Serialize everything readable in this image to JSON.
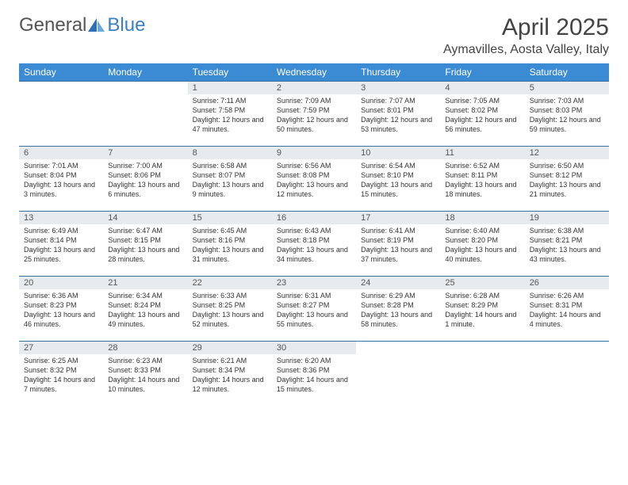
{
  "logo": {
    "part1": "General",
    "part2": "Blue"
  },
  "title": "April 2025",
  "location": "Aymavilles, Aosta Valley, Italy",
  "colors": {
    "header_bg": "#3b8bd4",
    "header_text": "#ffffff",
    "daynum_bg": "#e8ebee",
    "border": "#3b6fa0",
    "logo_accent": "#3b7fc4",
    "text": "#333333"
  },
  "dayHeaders": [
    "Sunday",
    "Monday",
    "Tuesday",
    "Wednesday",
    "Thursday",
    "Friday",
    "Saturday"
  ],
  "weeks": [
    [
      null,
      null,
      {
        "n": 1,
        "sr": "7:11 AM",
        "ss": "7:58 PM",
        "dl": "12 hours and 47 minutes."
      },
      {
        "n": 2,
        "sr": "7:09 AM",
        "ss": "7:59 PM",
        "dl": "12 hours and 50 minutes."
      },
      {
        "n": 3,
        "sr": "7:07 AM",
        "ss": "8:01 PM",
        "dl": "12 hours and 53 minutes."
      },
      {
        "n": 4,
        "sr": "7:05 AM",
        "ss": "8:02 PM",
        "dl": "12 hours and 56 minutes."
      },
      {
        "n": 5,
        "sr": "7:03 AM",
        "ss": "8:03 PM",
        "dl": "12 hours and 59 minutes."
      }
    ],
    [
      {
        "n": 6,
        "sr": "7:01 AM",
        "ss": "8:04 PM",
        "dl": "13 hours and 3 minutes."
      },
      {
        "n": 7,
        "sr": "7:00 AM",
        "ss": "8:06 PM",
        "dl": "13 hours and 6 minutes."
      },
      {
        "n": 8,
        "sr": "6:58 AM",
        "ss": "8:07 PM",
        "dl": "13 hours and 9 minutes."
      },
      {
        "n": 9,
        "sr": "6:56 AM",
        "ss": "8:08 PM",
        "dl": "13 hours and 12 minutes."
      },
      {
        "n": 10,
        "sr": "6:54 AM",
        "ss": "8:10 PM",
        "dl": "13 hours and 15 minutes."
      },
      {
        "n": 11,
        "sr": "6:52 AM",
        "ss": "8:11 PM",
        "dl": "13 hours and 18 minutes."
      },
      {
        "n": 12,
        "sr": "6:50 AM",
        "ss": "8:12 PM",
        "dl": "13 hours and 21 minutes."
      }
    ],
    [
      {
        "n": 13,
        "sr": "6:49 AM",
        "ss": "8:14 PM",
        "dl": "13 hours and 25 minutes."
      },
      {
        "n": 14,
        "sr": "6:47 AM",
        "ss": "8:15 PM",
        "dl": "13 hours and 28 minutes."
      },
      {
        "n": 15,
        "sr": "6:45 AM",
        "ss": "8:16 PM",
        "dl": "13 hours and 31 minutes."
      },
      {
        "n": 16,
        "sr": "6:43 AM",
        "ss": "8:18 PM",
        "dl": "13 hours and 34 minutes."
      },
      {
        "n": 17,
        "sr": "6:41 AM",
        "ss": "8:19 PM",
        "dl": "13 hours and 37 minutes."
      },
      {
        "n": 18,
        "sr": "6:40 AM",
        "ss": "8:20 PM",
        "dl": "13 hours and 40 minutes."
      },
      {
        "n": 19,
        "sr": "6:38 AM",
        "ss": "8:21 PM",
        "dl": "13 hours and 43 minutes."
      }
    ],
    [
      {
        "n": 20,
        "sr": "6:36 AM",
        "ss": "8:23 PM",
        "dl": "13 hours and 46 minutes."
      },
      {
        "n": 21,
        "sr": "6:34 AM",
        "ss": "8:24 PM",
        "dl": "13 hours and 49 minutes."
      },
      {
        "n": 22,
        "sr": "6:33 AM",
        "ss": "8:25 PM",
        "dl": "13 hours and 52 minutes."
      },
      {
        "n": 23,
        "sr": "6:31 AM",
        "ss": "8:27 PM",
        "dl": "13 hours and 55 minutes."
      },
      {
        "n": 24,
        "sr": "6:29 AM",
        "ss": "8:28 PM",
        "dl": "13 hours and 58 minutes."
      },
      {
        "n": 25,
        "sr": "6:28 AM",
        "ss": "8:29 PM",
        "dl": "14 hours and 1 minute."
      },
      {
        "n": 26,
        "sr": "6:26 AM",
        "ss": "8:31 PM",
        "dl": "14 hours and 4 minutes."
      }
    ],
    [
      {
        "n": 27,
        "sr": "6:25 AM",
        "ss": "8:32 PM",
        "dl": "14 hours and 7 minutes."
      },
      {
        "n": 28,
        "sr": "6:23 AM",
        "ss": "8:33 PM",
        "dl": "14 hours and 10 minutes."
      },
      {
        "n": 29,
        "sr": "6:21 AM",
        "ss": "8:34 PM",
        "dl": "14 hours and 12 minutes."
      },
      {
        "n": 30,
        "sr": "6:20 AM",
        "ss": "8:36 PM",
        "dl": "14 hours and 15 minutes."
      },
      null,
      null,
      null
    ]
  ],
  "labels": {
    "sunrise": "Sunrise:",
    "sunset": "Sunset:",
    "daylight": "Daylight:"
  }
}
